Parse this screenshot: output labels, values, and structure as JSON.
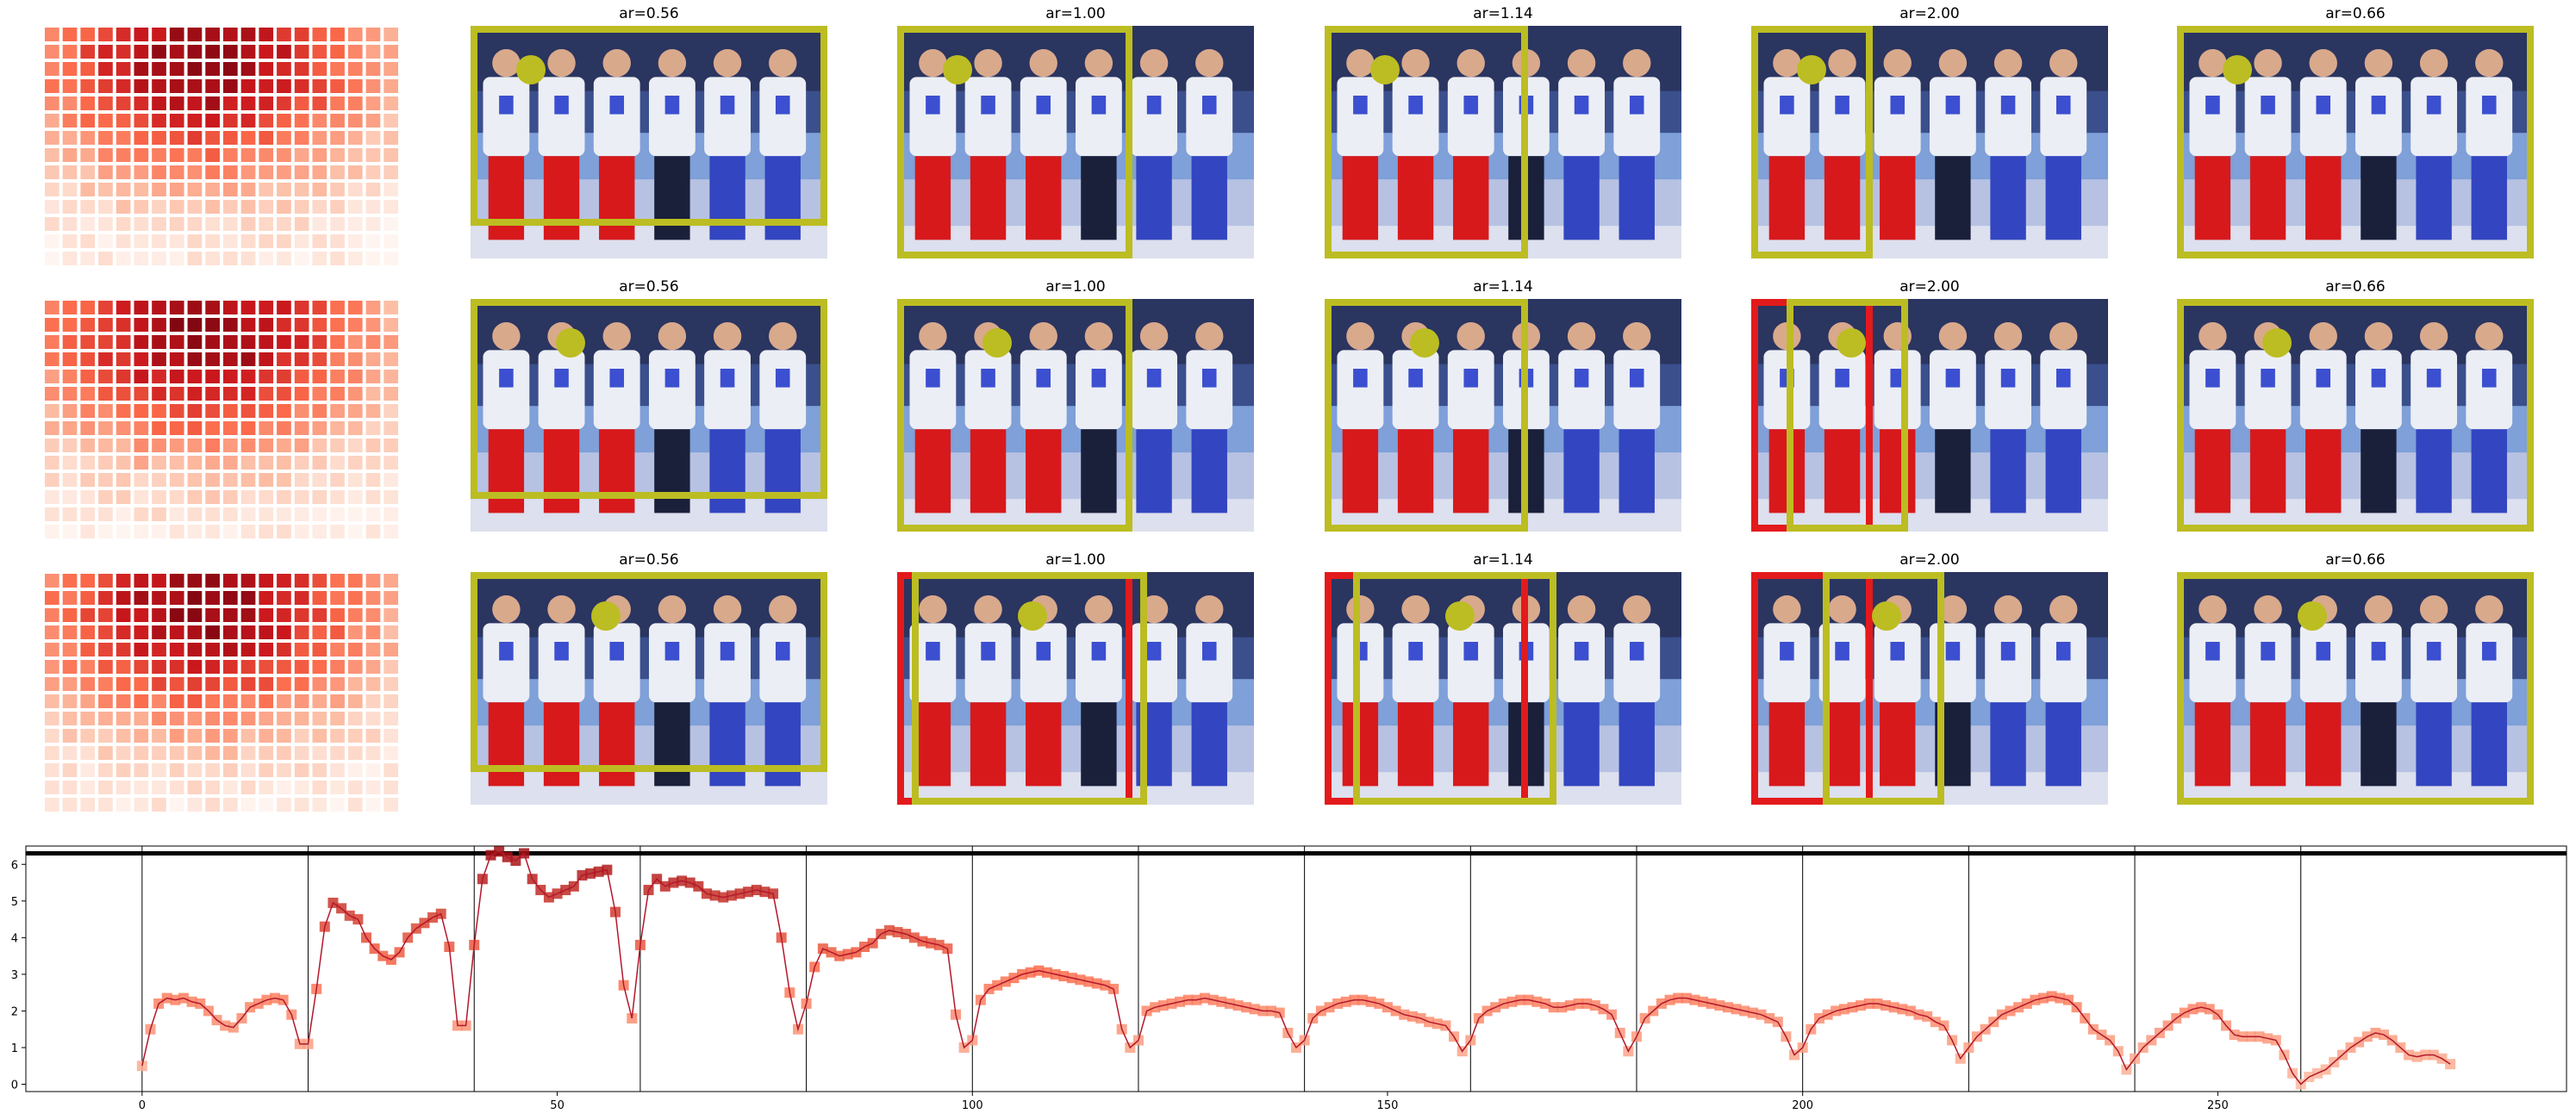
{
  "colors": {
    "box_yellow": "#bcbd22",
    "box_red": "#e31a1c",
    "line": "#b2182b",
    "marker_dark": "#a50f15",
    "marker_light": "#fcbba1"
  },
  "grid": {
    "rows": [
      {
        "panels": [
          {
            "title": "ar=0.56",
            "dot": [
              0.17,
              0.19
            ],
            "yellow": [
              0.0,
              0.0,
              1.0,
              0.86
            ],
            "red": []
          },
          {
            "title": "ar=1.00",
            "dot": [
              0.17,
              0.19
            ],
            "yellow": [
              0.0,
              0.0,
              0.66,
              1.0
            ],
            "red": []
          },
          {
            "title": "ar=1.14",
            "dot": [
              0.17,
              0.19
            ],
            "yellow": [
              0.0,
              0.0,
              0.57,
              1.0
            ],
            "red": []
          },
          {
            "title": "ar=2.00",
            "dot": [
              0.17,
              0.19
            ],
            "yellow": [
              0.0,
              0.0,
              0.34,
              1.0
            ],
            "red": []
          },
          {
            "title": "ar=0.66",
            "dot": [
              0.17,
              0.19
            ],
            "yellow": [
              0.0,
              0.0,
              1.0,
              1.0
            ],
            "red": []
          }
        ]
      },
      {
        "panels": [
          {
            "title": "ar=0.56",
            "dot": [
              0.28,
              0.19
            ],
            "yellow": [
              0.0,
              0.0,
              1.0,
              0.86
            ],
            "red": []
          },
          {
            "title": "ar=1.00",
            "dot": [
              0.28,
              0.19
            ],
            "yellow": [
              0.0,
              0.0,
              0.66,
              1.0
            ],
            "red": []
          },
          {
            "title": "ar=1.14",
            "dot": [
              0.28,
              0.19
            ],
            "yellow": [
              0.0,
              0.0,
              0.57,
              1.0
            ],
            "red": []
          },
          {
            "title": "ar=2.00",
            "dot": [
              0.28,
              0.19
            ],
            "yellow": [
              0.1,
              0.0,
              0.34,
              1.0
            ],
            "red": [
              [
                0.0,
                0.0,
                0.34,
                1.0
              ]
            ]
          },
          {
            "title": "ar=0.66",
            "dot": [
              0.28,
              0.19
            ],
            "yellow": [
              0.0,
              0.0,
              1.0,
              1.0
            ],
            "red": []
          }
        ]
      },
      {
        "panels": [
          {
            "title": "ar=0.56",
            "dot": [
              0.38,
              0.19
            ],
            "yellow": [
              0.0,
              0.0,
              1.0,
              0.86
            ],
            "red": []
          },
          {
            "title": "ar=1.00",
            "dot": [
              0.38,
              0.19
            ],
            "yellow": [
              0.04,
              0.0,
              0.66,
              1.0
            ],
            "red": [
              [
                0.0,
                0.0,
                0.66,
                1.0
              ]
            ]
          },
          {
            "title": "ar=1.14",
            "dot": [
              0.38,
              0.19
            ],
            "yellow": [
              0.08,
              0.0,
              0.57,
              1.0
            ],
            "red": [
              [
                0.0,
                0.0,
                0.57,
                1.0
              ]
            ]
          },
          {
            "title": "ar=2.00",
            "dot": [
              0.38,
              0.19
            ],
            "yellow": [
              0.2,
              0.0,
              0.34,
              1.0
            ],
            "red": [
              [
                0.0,
                0.0,
                0.34,
                1.0
              ]
            ]
          },
          {
            "title": "ar=0.66",
            "dot": [
              0.38,
              0.19
            ],
            "yellow": [
              0.0,
              0.0,
              1.0,
              1.0
            ],
            "red": []
          }
        ]
      }
    ]
  },
  "chart_data": {
    "type": "line",
    "xlim": [
      -14,
      292
    ],
    "ylim": [
      -0.2,
      6.5
    ],
    "xticks": [
      0,
      50,
      100,
      150,
      200,
      250
    ],
    "yticks": [
      0,
      1,
      2,
      3,
      4,
      5,
      6
    ],
    "vlines": [
      0,
      20,
      40,
      60,
      80,
      100,
      120,
      140,
      160,
      180,
      200,
      220,
      240,
      260
    ],
    "hline": 6.3,
    "segments": [
      {
        "x0": 0,
        "y": [
          0.5,
          1.5,
          2.2,
          2.35,
          2.3,
          2.35,
          2.25,
          2.2,
          2.0,
          1.75,
          1.6,
          1.55,
          1.8,
          2.1,
          2.2,
          2.3,
          2.35,
          2.3,
          1.9,
          1.1
        ]
      },
      {
        "x0": 20,
        "y": [
          1.1,
          2.6,
          4.3,
          4.95,
          4.8,
          4.6,
          4.5,
          4.0,
          3.7,
          3.5,
          3.4,
          3.6,
          4.0,
          4.25,
          4.4,
          4.55,
          4.65,
          3.75,
          1.6,
          1.6
        ]
      },
      {
        "x0": 40,
        "y": [
          3.8,
          5.6,
          6.25,
          6.35,
          6.2,
          6.1,
          6.3,
          5.6,
          5.3,
          5.1,
          5.2,
          5.3,
          5.4,
          5.7,
          5.75,
          5.8,
          5.85,
          4.7,
          2.7,
          1.8
        ]
      },
      {
        "x0": 60,
        "y": [
          3.8,
          5.3,
          5.6,
          5.4,
          5.5,
          5.55,
          5.5,
          5.4,
          5.2,
          5.15,
          5.1,
          5.15,
          5.2,
          5.25,
          5.3,
          5.25,
          5.2,
          4.0,
          2.5,
          1.5
        ]
      },
      {
        "x0": 80,
        "y": [
          2.2,
          3.2,
          3.7,
          3.6,
          3.5,
          3.55,
          3.6,
          3.75,
          3.85,
          4.1,
          4.2,
          4.15,
          4.1,
          4.0,
          3.9,
          3.85,
          3.8,
          3.7,
          1.9,
          1.0
        ]
      },
      {
        "x0": 100,
        "y": [
          1.2,
          2.3,
          2.6,
          2.7,
          2.8,
          2.9,
          3.0,
          3.05,
          3.1,
          3.05,
          3.0,
          2.95,
          2.9,
          2.85,
          2.8,
          2.75,
          2.7,
          2.6,
          1.5,
          1.0
        ]
      },
      {
        "x0": 120,
        "y": [
          1.2,
          2.0,
          2.1,
          2.15,
          2.2,
          2.25,
          2.3,
          2.3,
          2.35,
          2.3,
          2.25,
          2.2,
          2.15,
          2.1,
          2.05,
          2.0,
          2.0,
          1.95,
          1.4,
          1.0
        ]
      },
      {
        "x0": 140,
        "y": [
          1.2,
          1.8,
          2.0,
          2.1,
          2.2,
          2.25,
          2.3,
          2.3,
          2.25,
          2.2,
          2.1,
          2.0,
          1.9,
          1.85,
          1.8,
          1.7,
          1.65,
          1.6,
          1.3,
          0.9
        ]
      },
      {
        "x0": 160,
        "y": [
          1.2,
          1.8,
          2.0,
          2.1,
          2.2,
          2.25,
          2.3,
          2.3,
          2.25,
          2.2,
          2.1,
          2.1,
          2.15,
          2.2,
          2.2,
          2.15,
          2.05,
          1.9,
          1.4,
          0.9
        ]
      },
      {
        "x0": 180,
        "y": [
          1.3,
          1.8,
          2.0,
          2.2,
          2.3,
          2.35,
          2.35,
          2.3,
          2.25,
          2.2,
          2.15,
          2.1,
          2.05,
          2.0,
          1.95,
          1.9,
          1.8,
          1.7,
          1.3,
          0.8
        ]
      },
      {
        "x0": 200,
        "y": [
          1.0,
          1.5,
          1.8,
          1.9,
          2.0,
          2.05,
          2.1,
          2.15,
          2.2,
          2.2,
          2.15,
          2.1,
          2.05,
          2.0,
          1.9,
          1.85,
          1.7,
          1.6,
          1.2,
          0.7
        ]
      },
      {
        "x0": 220,
        "y": [
          1.0,
          1.3,
          1.5,
          1.7,
          1.9,
          2.0,
          2.1,
          2.2,
          2.3,
          2.35,
          2.4,
          2.35,
          2.3,
          2.1,
          1.8,
          1.5,
          1.35,
          1.2,
          0.9,
          0.4
        ]
      },
      {
        "x0": 240,
        "y": [
          0.7,
          1.0,
          1.2,
          1.4,
          1.6,
          1.8,
          1.95,
          2.05,
          2.1,
          2.05,
          1.9,
          1.6,
          1.35,
          1.3,
          1.3,
          1.3,
          1.25,
          1.2,
          0.8,
          0.3
        ]
      },
      {
        "x0": 260,
        "y": [
          0.0,
          0.2,
          0.3,
          0.4,
          0.6,
          0.8,
          1.0,
          1.15,
          1.3,
          1.4,
          1.35,
          1.2,
          1.0,
          0.8,
          0.75,
          0.8,
          0.8,
          0.7,
          0.55
        ]
      }
    ]
  }
}
